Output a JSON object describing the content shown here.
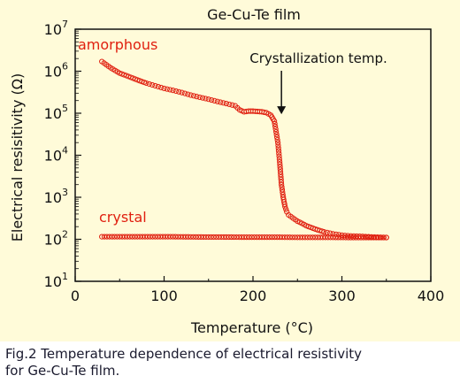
{
  "chart_data": {
    "type": "scatter",
    "title": "Ge-Cu-Te film",
    "xlabel": "Temperature (°C)",
    "ylabel": "Electrical resisitivity (Ω)",
    "xlim": [
      0,
      400
    ],
    "ylim": [
      10,
      10000000
    ],
    "y_scale": "log",
    "x_ticks": [
      "0",
      "100",
      "200",
      "300",
      "400"
    ],
    "y_ticks": [
      {
        "base": "10",
        "exp": "1"
      },
      {
        "base": "10",
        "exp": "2"
      },
      {
        "base": "10",
        "exp": "3"
      },
      {
        "base": "10",
        "exp": "4"
      },
      {
        "base": "10",
        "exp": "5"
      },
      {
        "base": "10",
        "exp": "6"
      },
      {
        "base": "10",
        "exp": "7"
      }
    ],
    "grid": false,
    "marker": "open circle",
    "series": [
      {
        "name": "amorphous",
        "color": "#e02010",
        "x": [
          30,
          40,
          50,
          60,
          70,
          80,
          90,
          100,
          110,
          120,
          130,
          140,
          150,
          160,
          170,
          180,
          185,
          190,
          195,
          200,
          205,
          210,
          215,
          220,
          224,
          228,
          230,
          232,
          234,
          236,
          238,
          240,
          245,
          250,
          255,
          260,
          270,
          280,
          290,
          300,
          310,
          320,
          330,
          340,
          350
        ],
        "y": [
          1700000,
          1200000,
          900000,
          750000,
          620000,
          520000,
          450000,
          390000,
          350000,
          310000,
          270000,
          240000,
          215000,
          190000,
          170000,
          150000,
          120000,
          108000,
          112000,
          112000,
          110000,
          108000,
          103000,
          90000,
          65000,
          20000,
          7000,
          2000,
          1000,
          600,
          450,
          380,
          320,
          270,
          240,
          210,
          175,
          150,
          135,
          125,
          120,
          118,
          115,
          112,
          110
        ]
      },
      {
        "name": "crystal",
        "color": "#e02010",
        "x": [
          30,
          50,
          70,
          90,
          110,
          130,
          150,
          170,
          190,
          210,
          230,
          250,
          270,
          290,
          310,
          330,
          350
        ],
        "y": [
          115,
          115,
          115,
          115,
          115,
          114,
          113,
          113,
          112,
          112,
          112,
          111,
          111,
          111,
          110,
          110,
          110
        ]
      }
    ],
    "annotations": [
      {
        "text": "Crystallization temp.",
        "arrow_to": {
          "x": 232,
          "y": 90000
        }
      }
    ]
  },
  "caption": {
    "line1": "Fig.2  Temperature dependence of electrical resistivity",
    "line2": "for Ge-Cu-Te film."
  }
}
